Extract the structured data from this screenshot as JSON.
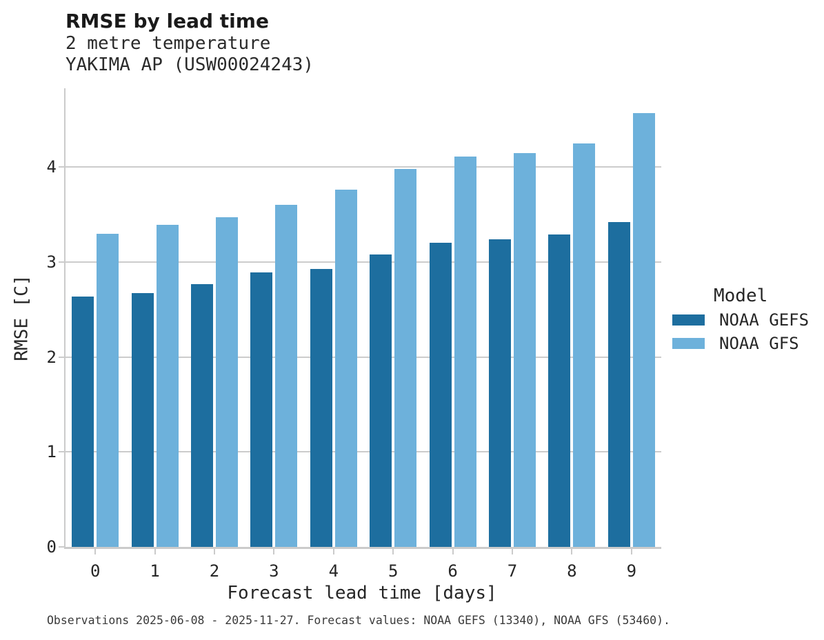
{
  "title": "RMSE by lead time",
  "subtitle_line1": "2 metre temperature",
  "subtitle_line2": "YAKIMA AP (USW00024243)",
  "caption": "Observations 2025-06-08 - 2025-11-27. Forecast values: NOAA GEFS (13340), NOAA GFS (53460).",
  "legend": {
    "title": "Model",
    "entries": [
      {
        "label": "NOAA GEFS",
        "color": "#1d6e9f"
      },
      {
        "label": "NOAA GFS",
        "color": "#6db1db"
      }
    ]
  },
  "chart_data": {
    "type": "bar",
    "title": "RMSE by lead time",
    "subtitle": "2 metre temperature, YAKIMA AP (USW00024243)",
    "categories": [
      "0",
      "1",
      "2",
      "3",
      "4",
      "5",
      "6",
      "7",
      "8",
      "9"
    ],
    "series": [
      {
        "name": "NOAA GEFS",
        "color": "#1d6e9f",
        "values": [
          2.64,
          2.67,
          2.77,
          2.89,
          2.93,
          3.08,
          3.2,
          3.24,
          3.29,
          3.42
        ]
      },
      {
        "name": "NOAA GFS",
        "color": "#6db1db",
        "values": [
          3.3,
          3.39,
          3.47,
          3.6,
          3.76,
          3.98,
          4.11,
          4.15,
          4.25,
          4.57
        ]
      }
    ],
    "xlabel": "Forecast lead time [days]",
    "ylabel": "RMSE [C]",
    "ylim": [
      0,
      4.83
    ],
    "yticks": [
      0,
      1,
      2,
      3,
      4
    ],
    "grid": true,
    "legend_title": "Model",
    "legend_position": "center-right"
  }
}
